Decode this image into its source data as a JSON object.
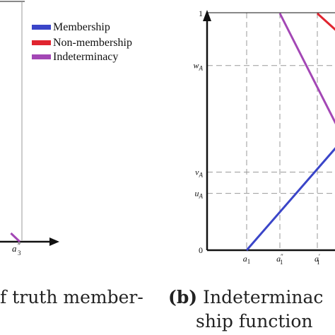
{
  "colors": {
    "membership": "#3a45c8",
    "nonmembership": "#e0242f",
    "indeterminacy": "#a347b5",
    "axis": "#111111",
    "grid": "#9a9a9a"
  },
  "left_panel": {
    "legend": [
      "Membership",
      "Non-membership",
      "Indeterminacy"
    ],
    "x_tick": "a″3",
    "caption_text": "f truth member-"
  },
  "right_panel": {
    "caption_label": "(b)",
    "caption_line1": "Indeterminac",
    "caption_line2": "ship function"
  },
  "chart_data": [
    {
      "type": "line",
      "title": "",
      "legend": [
        "Membership",
        "Non-membership",
        "Indeterminacy"
      ],
      "series": [
        {
          "name": "Indeterminacy",
          "points": [
            [
              0.55,
              0.04
            ],
            [
              1.0,
              0.0
            ]
          ]
        }
      ],
      "x_ticks": [
        "a″3"
      ],
      "grid": true
    },
    {
      "type": "line",
      "title": "",
      "y_ticks": [
        {
          "label": "1",
          "value": 1.0
        },
        {
          "label": "wA",
          "value": 0.78
        },
        {
          "label": "vA",
          "value": 0.33
        },
        {
          "label": "uA",
          "value": 0.24
        },
        {
          "label": "0",
          "value": 0.0
        }
      ],
      "x_ticks": [
        {
          "label": "a1",
          "value": 1
        },
        {
          "label": "a″1",
          "value": 2
        },
        {
          "label": "a′1",
          "value": 3
        }
      ],
      "grid": true,
      "series": [
        {
          "name": "Membership",
          "points": [
            [
              1,
              0.0
            ],
            [
              3.7,
              0.47
            ]
          ]
        },
        {
          "name": "Indeterminacy",
          "points": [
            [
              2.0,
              1.0
            ],
            [
              3.7,
              0.47
            ]
          ]
        },
        {
          "name": "Non-membership",
          "points": [
            [
              3.0,
              1.0
            ],
            [
              3.7,
              0.9
            ]
          ]
        }
      ]
    }
  ]
}
